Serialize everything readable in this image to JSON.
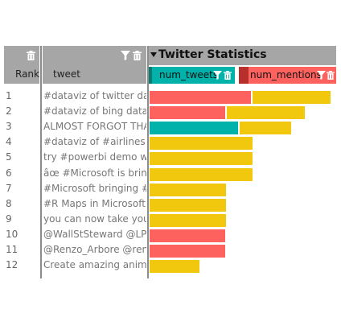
{
  "header": {
    "rank_label": "Rank",
    "tweet_label": "tweet",
    "group_title": "Twitter Statistics",
    "num_tweets_label": "num_tweets",
    "num_mentions_label": "num_mentions"
  },
  "colors": {
    "header_bg": "#a6a6a6",
    "num_tweets": "#00b2a9",
    "num_mentions": "#fd625e",
    "other": "#f2c80f"
  },
  "icons": [
    "trash-icon",
    "filter-icon"
  ],
  "chart_data": {
    "type": "bar",
    "orientation": "horizontal",
    "stacked": true,
    "title": "Twitter Statistics",
    "categories": [
      "1",
      "2",
      "3",
      "4",
      "5",
      "6",
      "7",
      "8",
      "9",
      "10",
      "11",
      "12"
    ],
    "tweets": [
      "#dataviz of twitter data",
      "#dataviz of bing data fo",
      "ALMOST FORGOT THAT",
      "#dataviz of #airlines tra",
      "try #powerbi demo w/ #",
      "âœ #Microsoft is bringi",
      "#Microsoft bringing #S(",
      "#R Maps in Microsoft #",
      "you can now take your (",
      "@WallStSteward @LPLR",
      "@Renzo_Arbore @renzo",
      "Create amazing animate"
    ],
    "rows": [
      [
        {
          "color": "#fd625e",
          "value": 126
        },
        {
          "color": "#f2c80f",
          "value": 97
        }
      ],
      [
        {
          "color": "#fd625e",
          "value": 94
        },
        {
          "color": "#f2c80f",
          "value": 97
        }
      ],
      [
        {
          "color": "#00b2a9",
          "value": 110
        },
        {
          "color": "#f2c80f",
          "value": 64
        }
      ],
      [
        {
          "color": "#f2c80f",
          "value": 128
        }
      ],
      [
        {
          "color": "#f2c80f",
          "value": 128
        }
      ],
      [
        {
          "color": "#f2c80f",
          "value": 128
        }
      ],
      [
        {
          "color": "#f2c80f",
          "value": 95
        }
      ],
      [
        {
          "color": "#f2c80f",
          "value": 95
        }
      ],
      [
        {
          "color": "#f2c80f",
          "value": 95
        }
      ],
      [
        {
          "color": "#fd625e",
          "value": 94
        }
      ],
      [
        {
          "color": "#fd625e",
          "value": 94
        }
      ],
      [
        {
          "color": "#f2c80f",
          "value": 62
        }
      ]
    ],
    "xlim": [
      0,
      233
    ]
  }
}
